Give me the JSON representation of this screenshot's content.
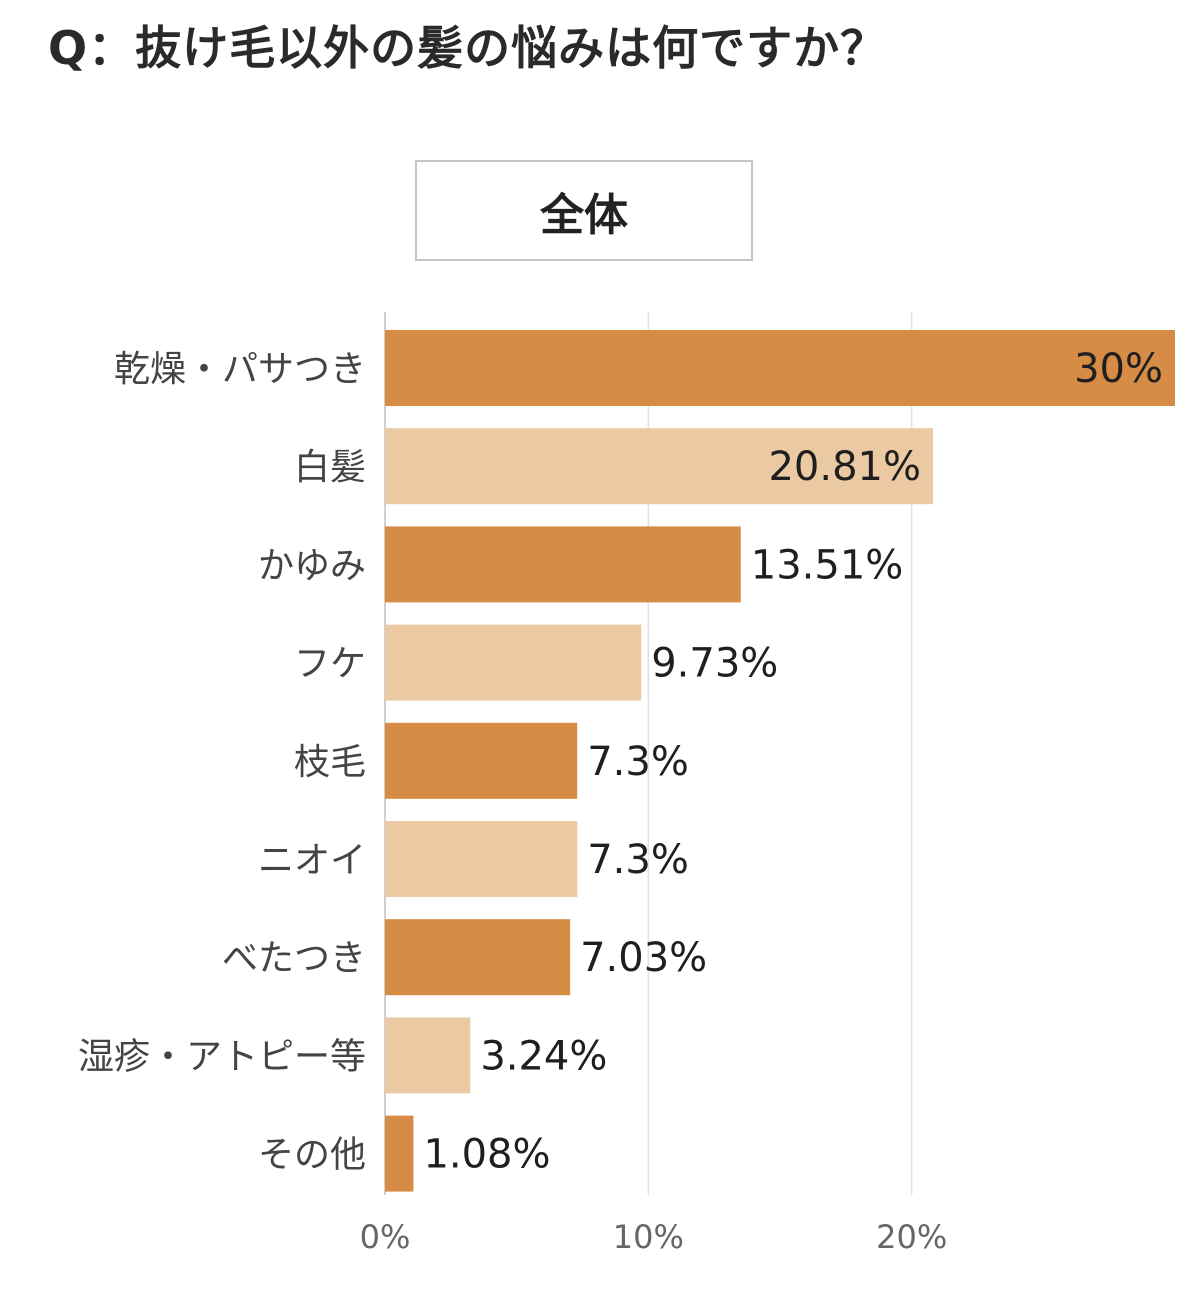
{
  "title": "Q：抜け毛以外の髪の悩みは何ですか？",
  "legend_label": "全体",
  "colors": {
    "dark": "#d68c44",
    "light": "#ebc9a2",
    "grid": "#e0e0e0",
    "axis": "#d0d0d0"
  },
  "chart_data": {
    "type": "bar",
    "orientation": "horizontal",
    "title": "Q：抜け毛以外の髪の悩みは何ですか？",
    "categories": [
      "乾燥・パサつき",
      "白髪",
      "かゆみ",
      "フケ",
      "枝毛",
      "ニオイ",
      "べたつき",
      "湿疹・アトピー等",
      "その他"
    ],
    "values": [
      30,
      20.81,
      13.51,
      9.73,
      7.3,
      7.3,
      7.03,
      3.24,
      1.08
    ],
    "value_labels": [
      "30%",
      "20.81%",
      "13.51%",
      "9.73%",
      "7.3%",
      "7.3%",
      "7.03%",
      "3.24%",
      "1.08%"
    ],
    "series": [
      {
        "name": "全体",
        "values": [
          30,
          20.81,
          13.51,
          9.73,
          7.3,
          7.3,
          7.03,
          3.24,
          1.08
        ]
      }
    ],
    "xticks": [
      "0%",
      "10%",
      "20%"
    ],
    "tick_values": [
      0,
      10,
      20
    ],
    "xlim": [
      0,
      30
    ],
    "grid": true,
    "legend": "top-center"
  }
}
